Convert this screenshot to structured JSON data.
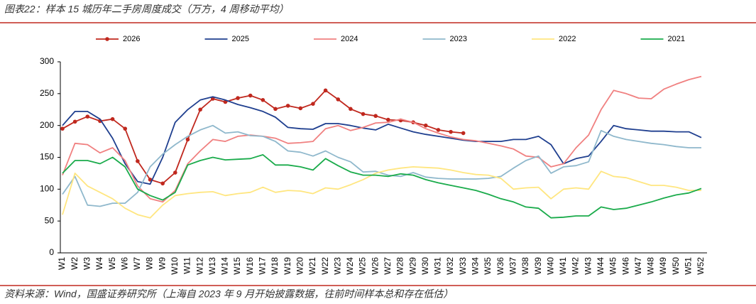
{
  "chart_data": {
    "type": "line",
    "title": "图表22：样本 15 城历年二手房周度成交（万方，4 周移动平均）",
    "source": "资料来源：Wind，国盛证券研究所（上海自 2023 年 9 月开始披露数据，往前时间样本总和存在低估）",
    "categories": [
      "W1",
      "W2",
      "W3",
      "W4",
      "W5",
      "W6",
      "W7",
      "W8",
      "W9",
      "W10",
      "W11",
      "W12",
      "W13",
      "W14",
      "W15",
      "W16",
      "W17",
      "W18",
      "W19",
      "W20",
      "W21",
      "W22",
      "W23",
      "W24",
      "W25",
      "W26",
      "W27",
      "W28",
      "W29",
      "W30",
      "W31",
      "W32",
      "W33",
      "W34",
      "W35",
      "W36",
      "W37",
      "W38",
      "W39",
      "W40",
      "W41",
      "W42",
      "W43",
      "W44",
      "W45",
      "W46",
      "W47",
      "W48",
      "W49",
      "W50",
      "W51",
      "W52"
    ],
    "ylim": [
      0,
      300
    ],
    "yticks": [
      0,
      50,
      100,
      150,
      200,
      250,
      300
    ],
    "grid": false,
    "series": [
      {
        "name": "2026",
        "color": "#c0281e",
        "markers": true,
        "values": [
          195,
          206,
          214,
          207,
          210,
          195,
          144,
          115,
          109,
          126,
          178,
          225,
          242,
          237,
          243,
          247,
          240,
          226,
          231,
          227,
          234,
          255,
          241,
          226,
          218,
          215,
          209,
          208,
          205,
          200,
          193,
          190,
          188,
          null,
          null,
          null,
          null,
          null,
          null,
          null,
          null,
          null,
          null,
          null,
          null,
          null,
          null,
          null,
          null,
          null,
          null,
          null
        ]
      },
      {
        "name": "2025",
        "color": "#1f3f8f",
        "values": [
          200,
          222,
          222,
          210,
          180,
          140,
          112,
          108,
          150,
          205,
          225,
          240,
          245,
          240,
          233,
          228,
          222,
          213,
          197,
          195,
          194,
          203,
          203,
          200,
          196,
          193,
          202,
          196,
          190,
          186,
          183,
          180,
          177,
          175,
          175,
          175,
          178,
          178,
          183,
          170,
          140,
          148,
          152,
          175,
          200,
          195,
          193,
          191,
          191,
          190,
          190,
          181
        ]
      },
      {
        "name": "2024",
        "color": "#f08080",
        "values": [
          122,
          172,
          170,
          157,
          165,
          145,
          105,
          85,
          80,
          98,
          140,
          160,
          178,
          175,
          183,
          185,
          183,
          180,
          172,
          173,
          175,
          195,
          200,
          192,
          197,
          204,
          205,
          210,
          205,
          195,
          188,
          182,
          178,
          176,
          172,
          168,
          163,
          152,
          150,
          135,
          140,
          165,
          185,
          225,
          255,
          250,
          243,
          242,
          257,
          265,
          272,
          277
        ]
      },
      {
        "name": "2023",
        "color": "#8fb8cc",
        "values": [
          92,
          120,
          75,
          73,
          78,
          78,
          95,
          135,
          155,
          170,
          183,
          193,
          200,
          188,
          190,
          184,
          183,
          175,
          160,
          158,
          152,
          160,
          150,
          143,
          127,
          128,
          122,
          120,
          126,
          119,
          117,
          116,
          116,
          116,
          117,
          120,
          133,
          145,
          152,
          125,
          135,
          137,
          143,
          192,
          183,
          178,
          175,
          172,
          170,
          167,
          165,
          165
        ]
      },
      {
        "name": "2022",
        "color": "#ffe680",
        "values": [
          60,
          125,
          105,
          95,
          85,
          70,
          60,
          55,
          75,
          90,
          93,
          95,
          96,
          90,
          93,
          95,
          103,
          95,
          98,
          97,
          93,
          102,
          100,
          107,
          115,
          125,
          130,
          133,
          135,
          134,
          133,
          130,
          126,
          123,
          122,
          117,
          100,
          102,
          103,
          85,
          100,
          102,
          100,
          128,
          120,
          118,
          112,
          106,
          106,
          103,
          98,
          98
        ]
      },
      {
        "name": "2021",
        "color": "#1aab4b",
        "values": [
          125,
          145,
          145,
          140,
          150,
          135,
          100,
          90,
          83,
          95,
          138,
          145,
          150,
          146,
          147,
          148,
          154,
          138,
          138,
          135,
          130,
          148,
          137,
          127,
          122,
          122,
          120,
          124,
          122,
          115,
          110,
          106,
          102,
          98,
          92,
          85,
          80,
          72,
          70,
          55,
          56,
          58,
          58,
          72,
          68,
          70,
          75,
          80,
          86,
          91,
          94,
          101
        ]
      }
    ]
  }
}
